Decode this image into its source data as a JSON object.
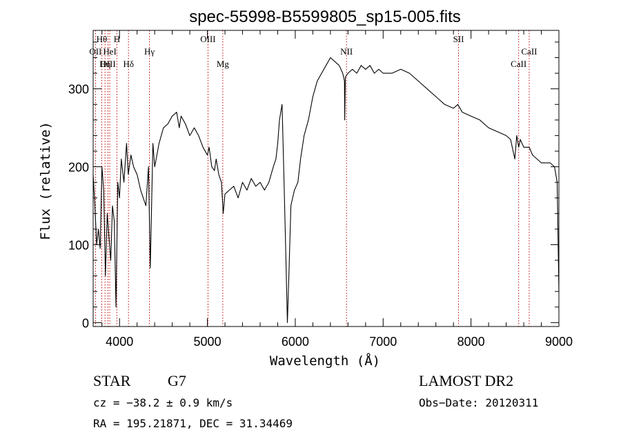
{
  "chart_data": {
    "type": "line",
    "title": "spec-55998-B5599805_sp15-005.fits",
    "xlabel": "Wavelength (Å)",
    "ylabel": "Flux (relative)",
    "xlim": [
      3700,
      9000
    ],
    "ylim": [
      -5,
      375
    ],
    "xticks": [
      4000,
      5000,
      6000,
      7000,
      8000,
      9000
    ],
    "yticks": [
      0,
      100,
      200,
      300
    ],
    "grid": false,
    "series": [
      {
        "x": [
          3700,
          3720,
          3740,
          3760,
          3780,
          3800,
          3820,
          3840,
          3860,
          3880,
          3900,
          3920,
          3940,
          3960,
          3980,
          4000,
          4020,
          4050,
          4080,
          4100,
          4130,
          4160,
          4200,
          4240,
          4270,
          4300,
          4330,
          4350,
          4380,
          4400,
          4450,
          4500,
          4550,
          4600,
          4650,
          4680,
          4700,
          4750,
          4800,
          4850,
          4900,
          4950,
          5000,
          5020,
          5050,
          5080,
          5100,
          5130,
          5160,
          5180,
          5200,
          5250,
          5300,
          5350,
          5400,
          5450,
          5500,
          5550,
          5600,
          5650,
          5700,
          5750,
          5780,
          5800,
          5820,
          5850,
          5870,
          5890,
          5910,
          5930,
          5950,
          5970,
          5990,
          6010,
          6030,
          6060,
          6100,
          6150,
          6200,
          6250,
          6300,
          6350,
          6400,
          6450,
          6500,
          6540,
          6560,
          6563,
          6570,
          6600,
          6650,
          6700,
          6750,
          6800,
          6850,
          6900,
          6950,
          7000,
          7100,
          7200,
          7300,
          7400,
          7500,
          7600,
          7700,
          7800,
          7850,
          7900,
          8000,
          8100,
          8200,
          8300,
          8400,
          8450,
          8498,
          8520,
          8542,
          8560,
          8600,
          8662,
          8700,
          8800,
          8900,
          8950,
          8980,
          9000
        ],
        "y": [
          190,
          150,
          100,
          120,
          95,
          200,
          170,
          60,
          140,
          110,
          80,
          150,
          130,
          20,
          180,
          160,
          210,
          180,
          230,
          190,
          215,
          200,
          190,
          170,
          160,
          150,
          200,
          70,
          230,
          200,
          230,
          250,
          255,
          265,
          270,
          250,
          265,
          255,
          240,
          250,
          240,
          225,
          215,
          225,
          200,
          195,
          210,
          190,
          180,
          140,
          165,
          170,
          175,
          160,
          180,
          170,
          185,
          175,
          180,
          170,
          180,
          200,
          210,
          230,
          260,
          280,
          190,
          100,
          0,
          70,
          150,
          160,
          170,
          175,
          180,
          210,
          240,
          260,
          290,
          310,
          320,
          330,
          340,
          335,
          330,
          320,
          310,
          260,
          315,
          320,
          325,
          320,
          330,
          325,
          330,
          320,
          325,
          320,
          320,
          325,
          320,
          310,
          300,
          290,
          280,
          275,
          280,
          270,
          265,
          260,
          250,
          245,
          240,
          235,
          210,
          240,
          225,
          235,
          225,
          225,
          215,
          205,
          205,
          200,
          180,
          40
        ]
      }
    ],
    "spectral_lines": [
      {
        "label": "Hθ",
        "x": 3798,
        "row": 1
      },
      {
        "label": "OII",
        "x": 3727,
        "row": 2
      },
      {
        "label": "OIII",
        "x": 3869,
        "row": 3
      },
      {
        "label": "H",
        "x": 3970,
        "row": 1
      },
      {
        "label": "Hη",
        "x": 3835,
        "row": 3
      },
      {
        "label": "HeI",
        "x": 3889,
        "row": 2
      },
      {
        "label": "Hδ",
        "x": 4102,
        "row": 3
      },
      {
        "label": "Hγ",
        "x": 4340,
        "row": 2
      },
      {
        "label": "OIII",
        "x": 5007,
        "row": 1
      },
      {
        "label": "Mg",
        "x": 5175,
        "row": 3
      },
      {
        "label": "NII",
        "x": 6583,
        "row": 2
      },
      {
        "label": "SII",
        "x": 7858,
        "row": 1
      },
      {
        "label": "CaII",
        "x": 8542,
        "row": 3
      },
      {
        "label": "CaII",
        "x": 8662,
        "row": 2
      }
    ],
    "colors": {
      "spectrum": "#000000",
      "line_markers": "#c00000"
    }
  },
  "info": {
    "object_class": "STAR",
    "subclass": "G7",
    "survey": "LAMOST DR2",
    "redshift": "cz = −38.2 ± 0.9 km/s",
    "obs_date": "Obs−Date: 20120311",
    "coords": "RA = 195.21871, DEC =  31.34469"
  }
}
